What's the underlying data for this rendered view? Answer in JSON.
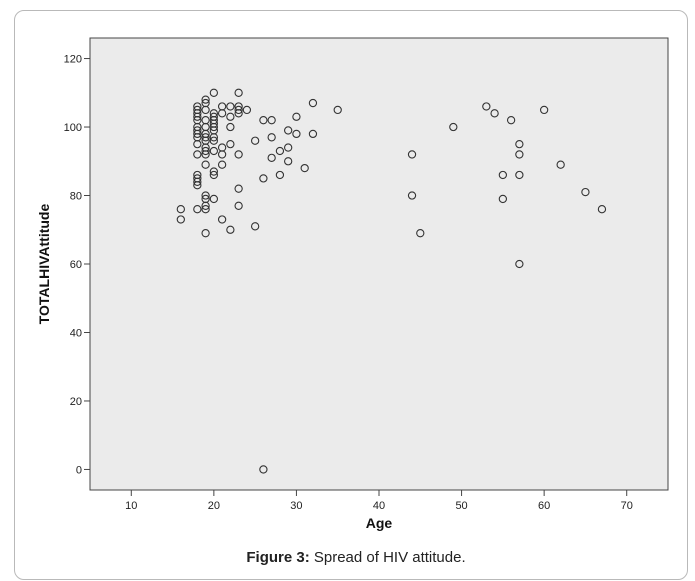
{
  "caption": {
    "label": "Figure 3:",
    "text": " Spread of HIV attitude."
  },
  "chart_data": {
    "type": "scatter",
    "xlabel": "Age",
    "ylabel": "TOTALHIVAttitude",
    "xlim": [
      5,
      75
    ],
    "ylim": [
      -6,
      126
    ],
    "xticks": [
      10,
      20,
      30,
      40,
      50,
      60,
      70
    ],
    "yticks": [
      0,
      20,
      40,
      60,
      80,
      100,
      120
    ],
    "grid": false,
    "background": "#ebebeb",
    "marker_color": "#333333",
    "points": [
      [
        16,
        76
      ],
      [
        16,
        73
      ],
      [
        18,
        106
      ],
      [
        18,
        105
      ],
      [
        18,
        104
      ],
      [
        18,
        103
      ],
      [
        18,
        102
      ],
      [
        18,
        100
      ],
      [
        18,
        99
      ],
      [
        18,
        98
      ],
      [
        18,
        97
      ],
      [
        18,
        95
      ],
      [
        18,
        92
      ],
      [
        18,
        86
      ],
      [
        18,
        85
      ],
      [
        18,
        84
      ],
      [
        18,
        83
      ],
      [
        18,
        76
      ],
      [
        19,
        108
      ],
      [
        19,
        107
      ],
      [
        19,
        105
      ],
      [
        19,
        102
      ],
      [
        19,
        100
      ],
      [
        19,
        98
      ],
      [
        19,
        97
      ],
      [
        19,
        96
      ],
      [
        19,
        94
      ],
      [
        19,
        93
      ],
      [
        19,
        92
      ],
      [
        19,
        89
      ],
      [
        19,
        80
      ],
      [
        19,
        79
      ],
      [
        19,
        77
      ],
      [
        19,
        76
      ],
      [
        19,
        69
      ],
      [
        20,
        110
      ],
      [
        20,
        104
      ],
      [
        20,
        103
      ],
      [
        20,
        102
      ],
      [
        20,
        101
      ],
      [
        20,
        100
      ],
      [
        20,
        99
      ],
      [
        20,
        97
      ],
      [
        20,
        96
      ],
      [
        20,
        93
      ],
      [
        20,
        87
      ],
      [
        20,
        86
      ],
      [
        20,
        79
      ],
      [
        21,
        106
      ],
      [
        21,
        104
      ],
      [
        21,
        94
      ],
      [
        21,
        92
      ],
      [
        21,
        89
      ],
      [
        21,
        73
      ],
      [
        22,
        106
      ],
      [
        22,
        103
      ],
      [
        22,
        100
      ],
      [
        22,
        95
      ],
      [
        22,
        70
      ],
      [
        23,
        110
      ],
      [
        23,
        106
      ],
      [
        23,
        105
      ],
      [
        23,
        104
      ],
      [
        23,
        92
      ],
      [
        23,
        82
      ],
      [
        23,
        77
      ],
      [
        24,
        105
      ],
      [
        25,
        96
      ],
      [
        25,
        71
      ],
      [
        26,
        102
      ],
      [
        26,
        85
      ],
      [
        26,
        0
      ],
      [
        27,
        102
      ],
      [
        27,
        97
      ],
      [
        27,
        91
      ],
      [
        28,
        93
      ],
      [
        28,
        86
      ],
      [
        29,
        99
      ],
      [
        29,
        94
      ],
      [
        29,
        90
      ],
      [
        30,
        103
      ],
      [
        30,
        98
      ],
      [
        31,
        88
      ],
      [
        32,
        107
      ],
      [
        32,
        98
      ],
      [
        35,
        105
      ],
      [
        44,
        92
      ],
      [
        44,
        80
      ],
      [
        45,
        69
      ],
      [
        49,
        100
      ],
      [
        53,
        106
      ],
      [
        54,
        104
      ],
      [
        55,
        86
      ],
      [
        55,
        79
      ],
      [
        56,
        102
      ],
      [
        57,
        95
      ],
      [
        57,
        92
      ],
      [
        57,
        86
      ],
      [
        57,
        60
      ],
      [
        60,
        105
      ],
      [
        62,
        89
      ],
      [
        65,
        81
      ],
      [
        67,
        76
      ]
    ]
  }
}
